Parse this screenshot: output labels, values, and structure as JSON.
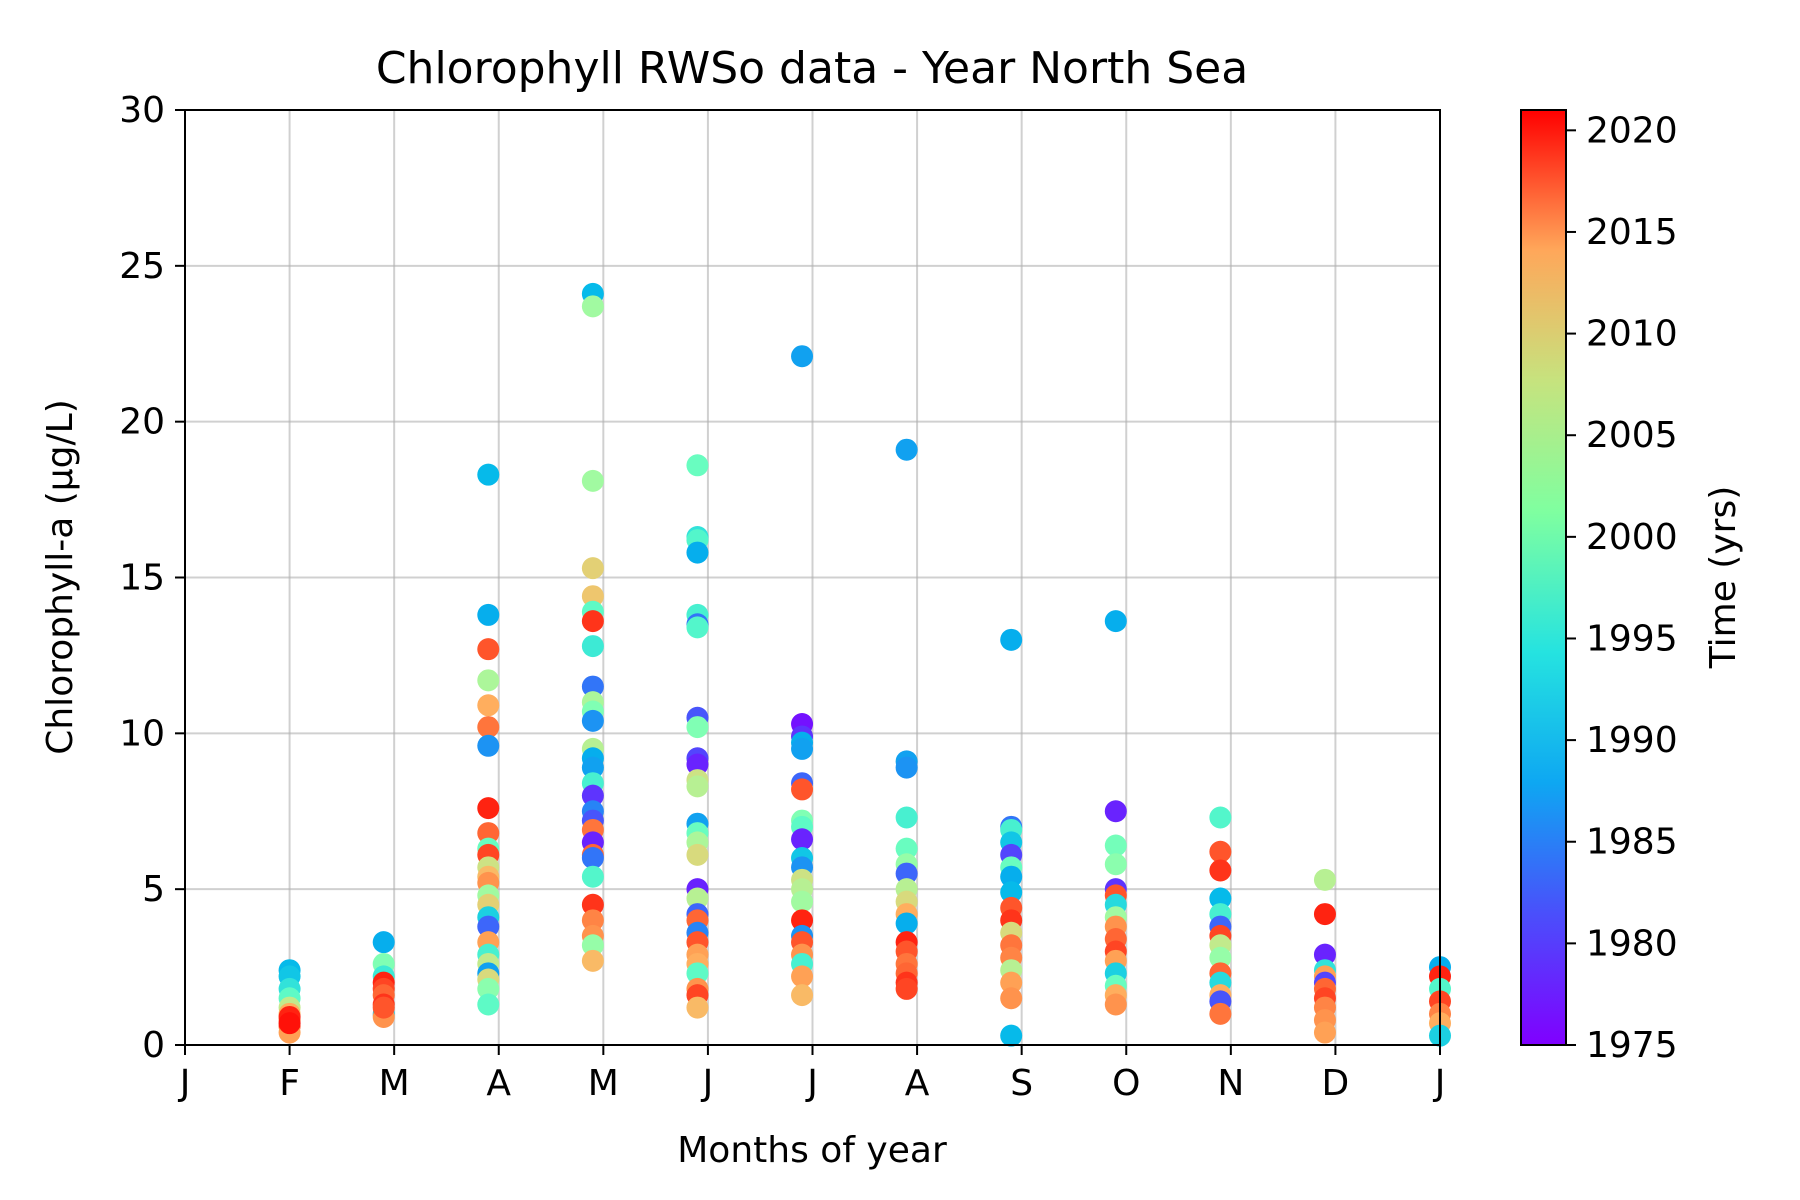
{
  "chart_data": {
    "type": "scatter",
    "title": "Chlorophyll RWSo data - Year North Sea",
    "xlabel": "Months of year",
    "ylabel": "Chlorophyll-a (µg/L)",
    "x_tick_labels": [
      "J",
      "F",
      "M",
      "A",
      "M",
      "J",
      "J",
      "A",
      "S",
      "O",
      "N",
      "D",
      "J"
    ],
    "xlim": [
      0,
      12
    ],
    "ylim": [
      0,
      30
    ],
    "y_ticks": [
      0,
      5,
      10,
      15,
      20,
      25,
      30
    ],
    "grid": true,
    "colorbar": {
      "label": "Time (yrs)",
      "range": [
        1975,
        2021
      ],
      "ticks": [
        1975,
        1980,
        1985,
        1990,
        1995,
        2000,
        2005,
        2010,
        2015,
        2020
      ],
      "colormap": "rainbow"
    },
    "points": [
      [
        1.0,
        2.4,
        1987
      ],
      [
        1.0,
        2.2,
        1988
      ],
      [
        1.0,
        1.8,
        1991
      ],
      [
        1.0,
        1.5,
        1995
      ],
      [
        1.0,
        1.2,
        2004
      ],
      [
        1.0,
        1.0,
        2010
      ],
      [
        1.0,
        0.8,
        2013
      ],
      [
        1.0,
        0.6,
        2016
      ],
      [
        1.0,
        0.4,
        2011
      ],
      [
        1.0,
        0.9,
        2019
      ],
      [
        1.0,
        0.7,
        2020
      ],
      [
        1.9,
        3.3,
        1986
      ],
      [
        1.9,
        2.6,
        1998
      ],
      [
        1.9,
        2.2,
        1992
      ],
      [
        1.9,
        2.0,
        2019
      ],
      [
        1.9,
        1.8,
        2017
      ],
      [
        1.9,
        1.6,
        2015
      ],
      [
        1.9,
        1.3,
        2018
      ],
      [
        1.9,
        1.0,
        1988
      ],
      [
        1.9,
        0.9,
        2012
      ],
      [
        1.9,
        1.2,
        2016
      ],
      [
        2.9,
        18.3,
        1987
      ],
      [
        2.9,
        13.8,
        1986
      ],
      [
        2.9,
        12.7,
        2016
      ],
      [
        2.9,
        11.7,
        2002
      ],
      [
        2.9,
        10.9,
        2010
      ],
      [
        2.9,
        10.2,
        2014
      ],
      [
        2.9,
        9.6,
        1984
      ],
      [
        2.9,
        7.6,
        2019
      ],
      [
        2.9,
        6.8,
        2015
      ],
      [
        2.9,
        6.3,
        1996
      ],
      [
        2.9,
        6.1,
        2017
      ],
      [
        2.9,
        5.7,
        2005
      ],
      [
        2.9,
        5.4,
        2009
      ],
      [
        2.9,
        5.2,
        2012
      ],
      [
        2.9,
        4.8,
        2001
      ],
      [
        2.9,
        4.5,
        2007
      ],
      [
        2.9,
        4.1,
        1989
      ],
      [
        2.9,
        3.8,
        1981
      ],
      [
        2.9,
        3.3,
        2011
      ],
      [
        2.9,
        2.9,
        1993
      ],
      [
        2.9,
        2.6,
        2004
      ],
      [
        2.9,
        2.3,
        1985
      ],
      [
        2.9,
        2.1,
        2006
      ],
      [
        2.9,
        1.8,
        1999
      ],
      [
        2.9,
        1.3,
        1995
      ],
      [
        3.9,
        24.1,
        1987
      ],
      [
        3.9,
        23.7,
        2001
      ],
      [
        3.9,
        18.1,
        2001
      ],
      [
        3.9,
        15.3,
        2007
      ],
      [
        3.9,
        14.4,
        2008
      ],
      [
        3.9,
        13.9,
        1995
      ],
      [
        3.9,
        13.6,
        2018
      ],
      [
        3.9,
        12.8,
        1992
      ],
      [
        3.9,
        11.5,
        1982
      ],
      [
        3.9,
        11.0,
        2002
      ],
      [
        3.9,
        10.7,
        1998
      ],
      [
        3.9,
        10.4,
        1984
      ],
      [
        3.9,
        9.5,
        2003
      ],
      [
        3.9,
        9.2,
        1986
      ],
      [
        3.9,
        8.9,
        1985
      ],
      [
        3.9,
        8.4,
        1993
      ],
      [
        3.9,
        8.0,
        1978
      ],
      [
        3.9,
        7.5,
        1983
      ],
      [
        3.9,
        7.2,
        1980
      ],
      [
        3.9,
        6.9,
        2014
      ],
      [
        3.9,
        6.5,
        1977
      ],
      [
        3.9,
        6.1,
        2015
      ],
      [
        3.9,
        6.0,
        1982
      ],
      [
        3.9,
        5.4,
        1994
      ],
      [
        3.9,
        4.5,
        2018
      ],
      [
        3.9,
        4.0,
        2013
      ],
      [
        3.9,
        3.5,
        2012
      ],
      [
        3.9,
        3.2,
        2000
      ],
      [
        3.9,
        2.7,
        2009
      ],
      [
        4.9,
        18.6,
        1996
      ],
      [
        4.9,
        16.3,
        1991
      ],
      [
        4.9,
        16.2,
        1994
      ],
      [
        4.9,
        15.8,
        1986
      ],
      [
        4.9,
        13.8,
        1993
      ],
      [
        4.9,
        13.5,
        1982
      ],
      [
        4.9,
        13.4,
        1994
      ],
      [
        4.9,
        10.5,
        1980
      ],
      [
        4.9,
        10.2,
        1998
      ],
      [
        4.9,
        9.2,
        1979
      ],
      [
        4.9,
        9.0,
        1977
      ],
      [
        4.9,
        8.5,
        2005
      ],
      [
        4.9,
        8.3,
        2003
      ],
      [
        4.9,
        7.1,
        1985
      ],
      [
        4.9,
        6.8,
        1996
      ],
      [
        4.9,
        6.5,
        2002
      ],
      [
        4.9,
        6.1,
        2006
      ],
      [
        4.9,
        5.0,
        1977
      ],
      [
        4.9,
        4.7,
        2003
      ],
      [
        4.9,
        4.2,
        1981
      ],
      [
        4.9,
        4.0,
        2015
      ],
      [
        4.9,
        3.6,
        1983
      ],
      [
        4.9,
        3.3,
        2016
      ],
      [
        4.9,
        2.9,
        2011
      ],
      [
        4.9,
        2.6,
        2010
      ],
      [
        4.9,
        2.3,
        1995
      ],
      [
        4.9,
        1.8,
        2012
      ],
      [
        4.9,
        1.6,
        2017
      ],
      [
        4.9,
        1.2,
        2009
      ],
      [
        5.9,
        22.1,
        1985
      ],
      [
        5.9,
        10.3,
        1976
      ],
      [
        5.9,
        9.9,
        1978
      ],
      [
        5.9,
        9.7,
        1986
      ],
      [
        5.9,
        9.5,
        1985
      ],
      [
        5.9,
        8.4,
        1981
      ],
      [
        5.9,
        8.2,
        2016
      ],
      [
        5.9,
        7.2,
        1998
      ],
      [
        5.9,
        7.0,
        1995
      ],
      [
        5.9,
        6.6,
        1977
      ],
      [
        5.9,
        6.0,
        1988
      ],
      [
        5.9,
        5.7,
        1984
      ],
      [
        5.9,
        5.3,
        2005
      ],
      [
        5.9,
        5.0,
        2003
      ],
      [
        5.9,
        4.6,
        2001
      ],
      [
        5.9,
        4.0,
        2019
      ],
      [
        5.9,
        3.5,
        1984
      ],
      [
        5.9,
        3.3,
        2016
      ],
      [
        5.9,
        2.9,
        2012
      ],
      [
        5.9,
        2.6,
        1993
      ],
      [
        5.9,
        2.2,
        2011
      ],
      [
        5.9,
        1.6,
        2009
      ],
      [
        6.9,
        19.1,
        1985
      ],
      [
        6.9,
        9.1,
        1985
      ],
      [
        6.9,
        8.9,
        1984
      ],
      [
        6.9,
        7.3,
        1993
      ],
      [
        6.9,
        6.3,
        1996
      ],
      [
        6.9,
        5.8,
        2000
      ],
      [
        6.9,
        5.5,
        1981
      ],
      [
        6.9,
        5.0,
        2003
      ],
      [
        6.9,
        4.6,
        2006
      ],
      [
        6.9,
        4.2,
        2010
      ],
      [
        6.9,
        3.9,
        1986
      ],
      [
        6.9,
        3.3,
        2019
      ],
      [
        6.9,
        3.0,
        2016
      ],
      [
        6.9,
        2.6,
        2014
      ],
      [
        6.9,
        2.3,
        2015
      ],
      [
        6.9,
        2.0,
        2018
      ],
      [
        6.9,
        1.8,
        2017
      ],
      [
        7.9,
        13.0,
        1986
      ],
      [
        7.9,
        7.0,
        1982
      ],
      [
        7.9,
        6.9,
        1993
      ],
      [
        7.9,
        6.5,
        1988
      ],
      [
        7.9,
        6.1,
        1979
      ],
      [
        7.9,
        5.7,
        1996
      ],
      [
        7.9,
        5.4,
        1986
      ],
      [
        7.9,
        4.9,
        1987
      ],
      [
        7.9,
        4.4,
        2016
      ],
      [
        7.9,
        4.0,
        2018
      ],
      [
        7.9,
        3.6,
        2006
      ],
      [
        7.9,
        3.2,
        2014
      ],
      [
        7.9,
        2.8,
        2013
      ],
      [
        7.9,
        2.4,
        2003
      ],
      [
        7.9,
        2.0,
        2011
      ],
      [
        7.9,
        1.5,
        2012
      ],
      [
        7.9,
        0.3,
        1987
      ],
      [
        8.9,
        13.6,
        1986
      ],
      [
        8.9,
        7.5,
        1977
      ],
      [
        8.9,
        6.4,
        1997
      ],
      [
        8.9,
        5.8,
        1999
      ],
      [
        8.9,
        5.0,
        1978
      ],
      [
        8.9,
        4.8,
        2016
      ],
      [
        8.9,
        4.5,
        1990
      ],
      [
        8.9,
        4.1,
        2001
      ],
      [
        8.9,
        3.8,
        2012
      ],
      [
        8.9,
        3.4,
        2015
      ],
      [
        8.9,
        3.0,
        2017
      ],
      [
        8.9,
        2.7,
        2011
      ],
      [
        8.9,
        2.3,
        1989
      ],
      [
        8.9,
        1.9,
        1996
      ],
      [
        8.9,
        1.6,
        2010
      ],
      [
        8.9,
        1.3,
        2012
      ],
      [
        9.9,
        7.3,
        1994
      ],
      [
        9.9,
        6.2,
        2016
      ],
      [
        9.9,
        5.6,
        2018
      ],
      [
        9.9,
        4.7,
        1987
      ],
      [
        9.9,
        4.2,
        1993
      ],
      [
        9.9,
        3.8,
        1981
      ],
      [
        9.9,
        3.5,
        2017
      ],
      [
        9.9,
        3.2,
        2004
      ],
      [
        9.9,
        2.8,
        2000
      ],
      [
        9.9,
        2.3,
        2015
      ],
      [
        9.9,
        2.0,
        1990
      ],
      [
        9.9,
        1.6,
        2010
      ],
      [
        9.9,
        1.4,
        1980
      ],
      [
        9.9,
        1.0,
        2014
      ],
      [
        10.9,
        5.3,
        2003
      ],
      [
        10.9,
        4.2,
        2019
      ],
      [
        10.9,
        2.9,
        1977
      ],
      [
        10.9,
        2.4,
        1991
      ],
      [
        10.9,
        2.2,
        2011
      ],
      [
        10.9,
        2.0,
        1979
      ],
      [
        10.9,
        1.8,
        2015
      ],
      [
        10.9,
        1.5,
        2017
      ],
      [
        10.9,
        1.2,
        2013
      ],
      [
        10.9,
        0.8,
        2012
      ],
      [
        10.9,
        0.4,
        2011
      ],
      [
        12.0,
        2.5,
        1986
      ],
      [
        12.0,
        2.2,
        2019
      ],
      [
        12.0,
        1.8,
        1994
      ],
      [
        12.0,
        1.4,
        2017
      ],
      [
        12.0,
        1.0,
        2013
      ],
      [
        12.0,
        0.7,
        2010
      ],
      [
        12.0,
        0.3,
        1989
      ]
    ]
  }
}
